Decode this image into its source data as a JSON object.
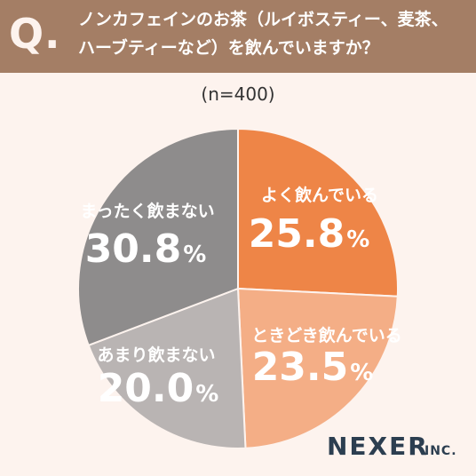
{
  "header": {
    "q_letter": "Q",
    "q_dot": ".",
    "question_line1": "ノンカフェインのお茶（ルイボスティー、麦茶、",
    "question_line2": "ハーブティーなど）を飲んでいますか？"
  },
  "sample_size": "(n=400)",
  "brand": {
    "name": "NEXER",
    "suffix": "INC."
  },
  "chart_data": {
    "type": "pie",
    "title": "ノンカフェインのお茶（ルイボスティー、麦茶、ハーブティーなど）を飲んでいますか？",
    "start_angle": "12 o'clock, clockwise",
    "slices": [
      {
        "label": "よく飲んでいる",
        "value": 25.8,
        "display": "25.8",
        "unit": "%",
        "color": "#ee8547"
      },
      {
        "label": "ときどき飲んでいる",
        "value": 23.5,
        "display": "23.5",
        "unit": "%",
        "color": "#f4ae86"
      },
      {
        "label": "あまり飲まない",
        "value": 20.0,
        "display": "20.0",
        "unit": "%",
        "color": "#b9b4b3"
      },
      {
        "label": "まったく飲まない",
        "value": 30.8,
        "display": "30.8",
        "unit": "%",
        "color": "#8e8c8c"
      }
    ]
  }
}
